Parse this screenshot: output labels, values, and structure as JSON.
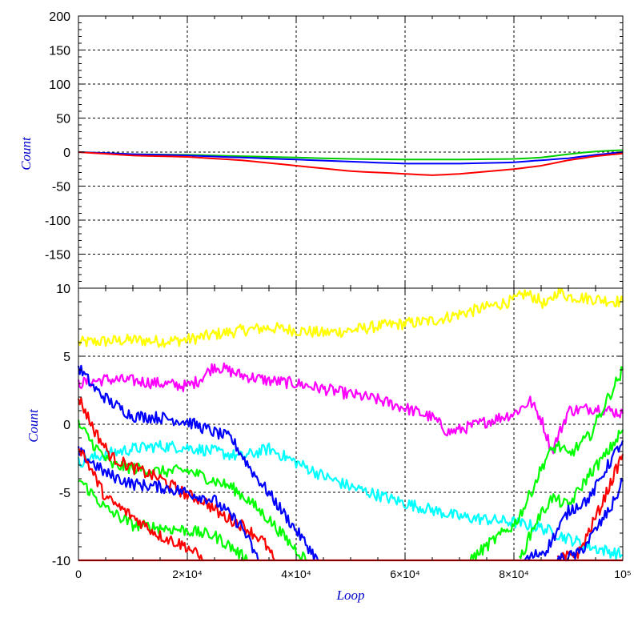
{
  "chart_data": [
    {
      "type": "line",
      "ylabel": "Count",
      "xlim": [
        0,
        100000
      ],
      "ylim": [
        -200,
        200
      ],
      "yticks": [
        "200",
        "150",
        "100",
        "50",
        "0",
        "-50",
        "-100",
        "-150"
      ],
      "grid": true,
      "series": [
        {
          "color": "#00cc00",
          "x": [
            0,
            10000,
            20000,
            30000,
            40000,
            50000,
            60000,
            70000,
            80000,
            85000,
            90000,
            95000,
            100000
          ],
          "values": [
            0,
            -3,
            -4,
            -6,
            -8,
            -10,
            -11,
            -11,
            -10,
            -8,
            -3,
            1,
            3
          ]
        },
        {
          "color": "#0000ff",
          "x": [
            0,
            10000,
            20000,
            30000,
            40000,
            50000,
            60000,
            70000,
            80000,
            85000,
            90000,
            95000,
            100000
          ],
          "values": [
            0,
            -3,
            -5,
            -8,
            -11,
            -14,
            -17,
            -17,
            -15,
            -12,
            -9,
            -4,
            0
          ]
        },
        {
          "color": "#ff0000",
          "x": [
            0,
            10000,
            20000,
            30000,
            40000,
            50000,
            60000,
            65000,
            70000,
            80000,
            85000,
            90000,
            95000,
            100000
          ],
          "values": [
            0,
            -5,
            -7,
            -12,
            -20,
            -28,
            -32,
            -34,
            -32,
            -25,
            -20,
            -12,
            -6,
            -2
          ]
        }
      ]
    },
    {
      "type": "line",
      "xlabel": "Loop",
      "ylabel": "Count",
      "xlim": [
        0,
        100000
      ],
      "ylim": [
        -10,
        10
      ],
      "xticks": [
        "0",
        "2×10⁴",
        "4×10⁴",
        "6×10⁴",
        "8×10⁴",
        "10⁵"
      ],
      "yticks": [
        "10",
        "5",
        "0",
        "-5",
        "-10"
      ],
      "grid": true,
      "series": [
        {
          "color": "#ffff00",
          "x": [
            0,
            5000,
            10000,
            15000,
            20000,
            25000,
            30000,
            35000,
            40000,
            45000,
            50000,
            55000,
            60000,
            65000,
            70000,
            75000,
            80000,
            82000,
            84000,
            86000,
            88000,
            90000,
            95000,
            100000
          ],
          "values": [
            6.0,
            6.1,
            6.2,
            6.1,
            6.2,
            6.6,
            6.9,
            7.1,
            6.9,
            6.7,
            6.9,
            7.2,
            7.4,
            7.6,
            8.1,
            8.6,
            9.1,
            9.6,
            9.3,
            8.7,
            9.8,
            9.4,
            9.2,
            9.0
          ]
        },
        {
          "color": "#ff00ff",
          "x": [
            0,
            5000,
            10000,
            15000,
            20000,
            22000,
            25000,
            30000,
            35000,
            40000,
            45000,
            50000,
            55000,
            60000,
            65000,
            68000,
            70000,
            75000,
            80000,
            83000,
            85000,
            87000,
            90000,
            95000,
            100000
          ],
          "values": [
            3.0,
            3.3,
            3.2,
            3.0,
            2.8,
            3.2,
            4.3,
            3.6,
            3.2,
            3.0,
            2.6,
            2.2,
            1.8,
            1.2,
            0.5,
            -0.6,
            -0.4,
            0.2,
            0.8,
            1.7,
            0.4,
            -2.0,
            1.0,
            1.2,
            0.8
          ]
        },
        {
          "color": "#00ffff",
          "x": [
            0,
            5000,
            10000,
            15000,
            20000,
            25000,
            30000,
            35000,
            40000,
            45000,
            50000,
            55000,
            60000,
            65000,
            70000,
            75000,
            80000,
            85000,
            90000,
            95000,
            100000
          ],
          "values": [
            -2.8,
            -2.2,
            -1.8,
            -1.6,
            -1.7,
            -2.0,
            -2.4,
            -1.8,
            -2.8,
            -3.8,
            -4.6,
            -5.2,
            -5.8,
            -6.3,
            -6.8,
            -7.0,
            -7.2,
            -7.6,
            -8.4,
            -9.1,
            -9.6
          ]
        },
        {
          "color": "#0000ff",
          "x": [
            0,
            3000,
            6000,
            10000,
            15000,
            20000,
            25000,
            28000,
            32000,
            36000,
            40000,
            44000
          ],
          "values": [
            4.2,
            2.6,
            1.6,
            0.6,
            0.5,
            0.2,
            -0.6,
            -1.0,
            -3.5,
            -5.6,
            -7.8,
            -10
          ]
        },
        {
          "color": "#00ff00",
          "x": [
            0,
            3000,
            6000,
            10000,
            15000,
            20000,
            24000,
            28000,
            31000,
            35000,
            39000,
            42000
          ],
          "values": [
            0.0,
            -1.6,
            -3.0,
            -3.2,
            -3.5,
            -3.4,
            -4.0,
            -4.6,
            -5.5,
            -7.0,
            -8.8,
            -10
          ]
        },
        {
          "color": "#ff0000",
          "x": [
            0,
            3000,
            6000,
            10000,
            15000,
            20000,
            23000,
            26000,
            30000,
            34000,
            36000
          ],
          "values": [
            2.0,
            -0.5,
            -2.4,
            -3.2,
            -4.0,
            -5.2,
            -5.6,
            -6.6,
            -7.4,
            -8.6,
            -10
          ]
        },
        {
          "color": "#0000ff",
          "x": [
            0,
            5000,
            10000,
            15000,
            20000,
            25000,
            30000,
            33000
          ],
          "values": [
            -2.0,
            -3.6,
            -4.4,
            -4.6,
            -5.0,
            -5.6,
            -7.5,
            -10
          ]
        },
        {
          "color": "#00ff00",
          "x": [
            0,
            5000,
            10000,
            15000,
            20000,
            25000,
            28000,
            31000
          ],
          "values": [
            -4.0,
            -6.2,
            -7.4,
            -7.6,
            -7.8,
            -8.2,
            -9.0,
            -10
          ]
        },
        {
          "color": "#ff0000",
          "x": [
            0,
            5000,
            10000,
            15000,
            20000,
            23000
          ],
          "values": [
            -1.5,
            -5.4,
            -6.8,
            -8.2,
            -9.0,
            -10
          ]
        },
        {
          "color": "#00ff00",
          "x": [
            72000,
            76000,
            80000,
            82000,
            84000,
            86000,
            88000,
            90000,
            94000,
            97000,
            100000
          ],
          "values": [
            -10,
            -8.6,
            -7.4,
            -6.0,
            -4.2,
            -2.4,
            -1.5,
            -2.3,
            -0.8,
            1.7,
            4.0
          ]
        },
        {
          "color": "#00ff00",
          "x": [
            81000,
            84000,
            87000,
            90000,
            94000,
            97000,
            100000
          ],
          "values": [
            -10,
            -7.2,
            -5.4,
            -6.0,
            -3.6,
            -2.2,
            -0.4
          ]
        },
        {
          "color": "#0000ff",
          "x": [
            82000,
            86000,
            90000,
            94000,
            97000,
            100000
          ],
          "values": [
            -10,
            -9.2,
            -6.4,
            -5.4,
            -3.2,
            -1.2
          ]
        },
        {
          "color": "#ff0000",
          "x": [
            88000,
            92000,
            96000,
            100000
          ],
          "values": [
            -10,
            -9.4,
            -6.0,
            -2.2
          ]
        },
        {
          "color": "#0000ff",
          "x": [
            88000,
            92000,
            95000,
            98000,
            100000
          ],
          "values": [
            -10,
            -9.5,
            -7.8,
            -6.0,
            -4.2
          ]
        },
        {
          "color": "#ff0000",
          "x": [
            0,
            100000
          ],
          "values": [
            -10,
            -10
          ]
        }
      ]
    }
  ]
}
